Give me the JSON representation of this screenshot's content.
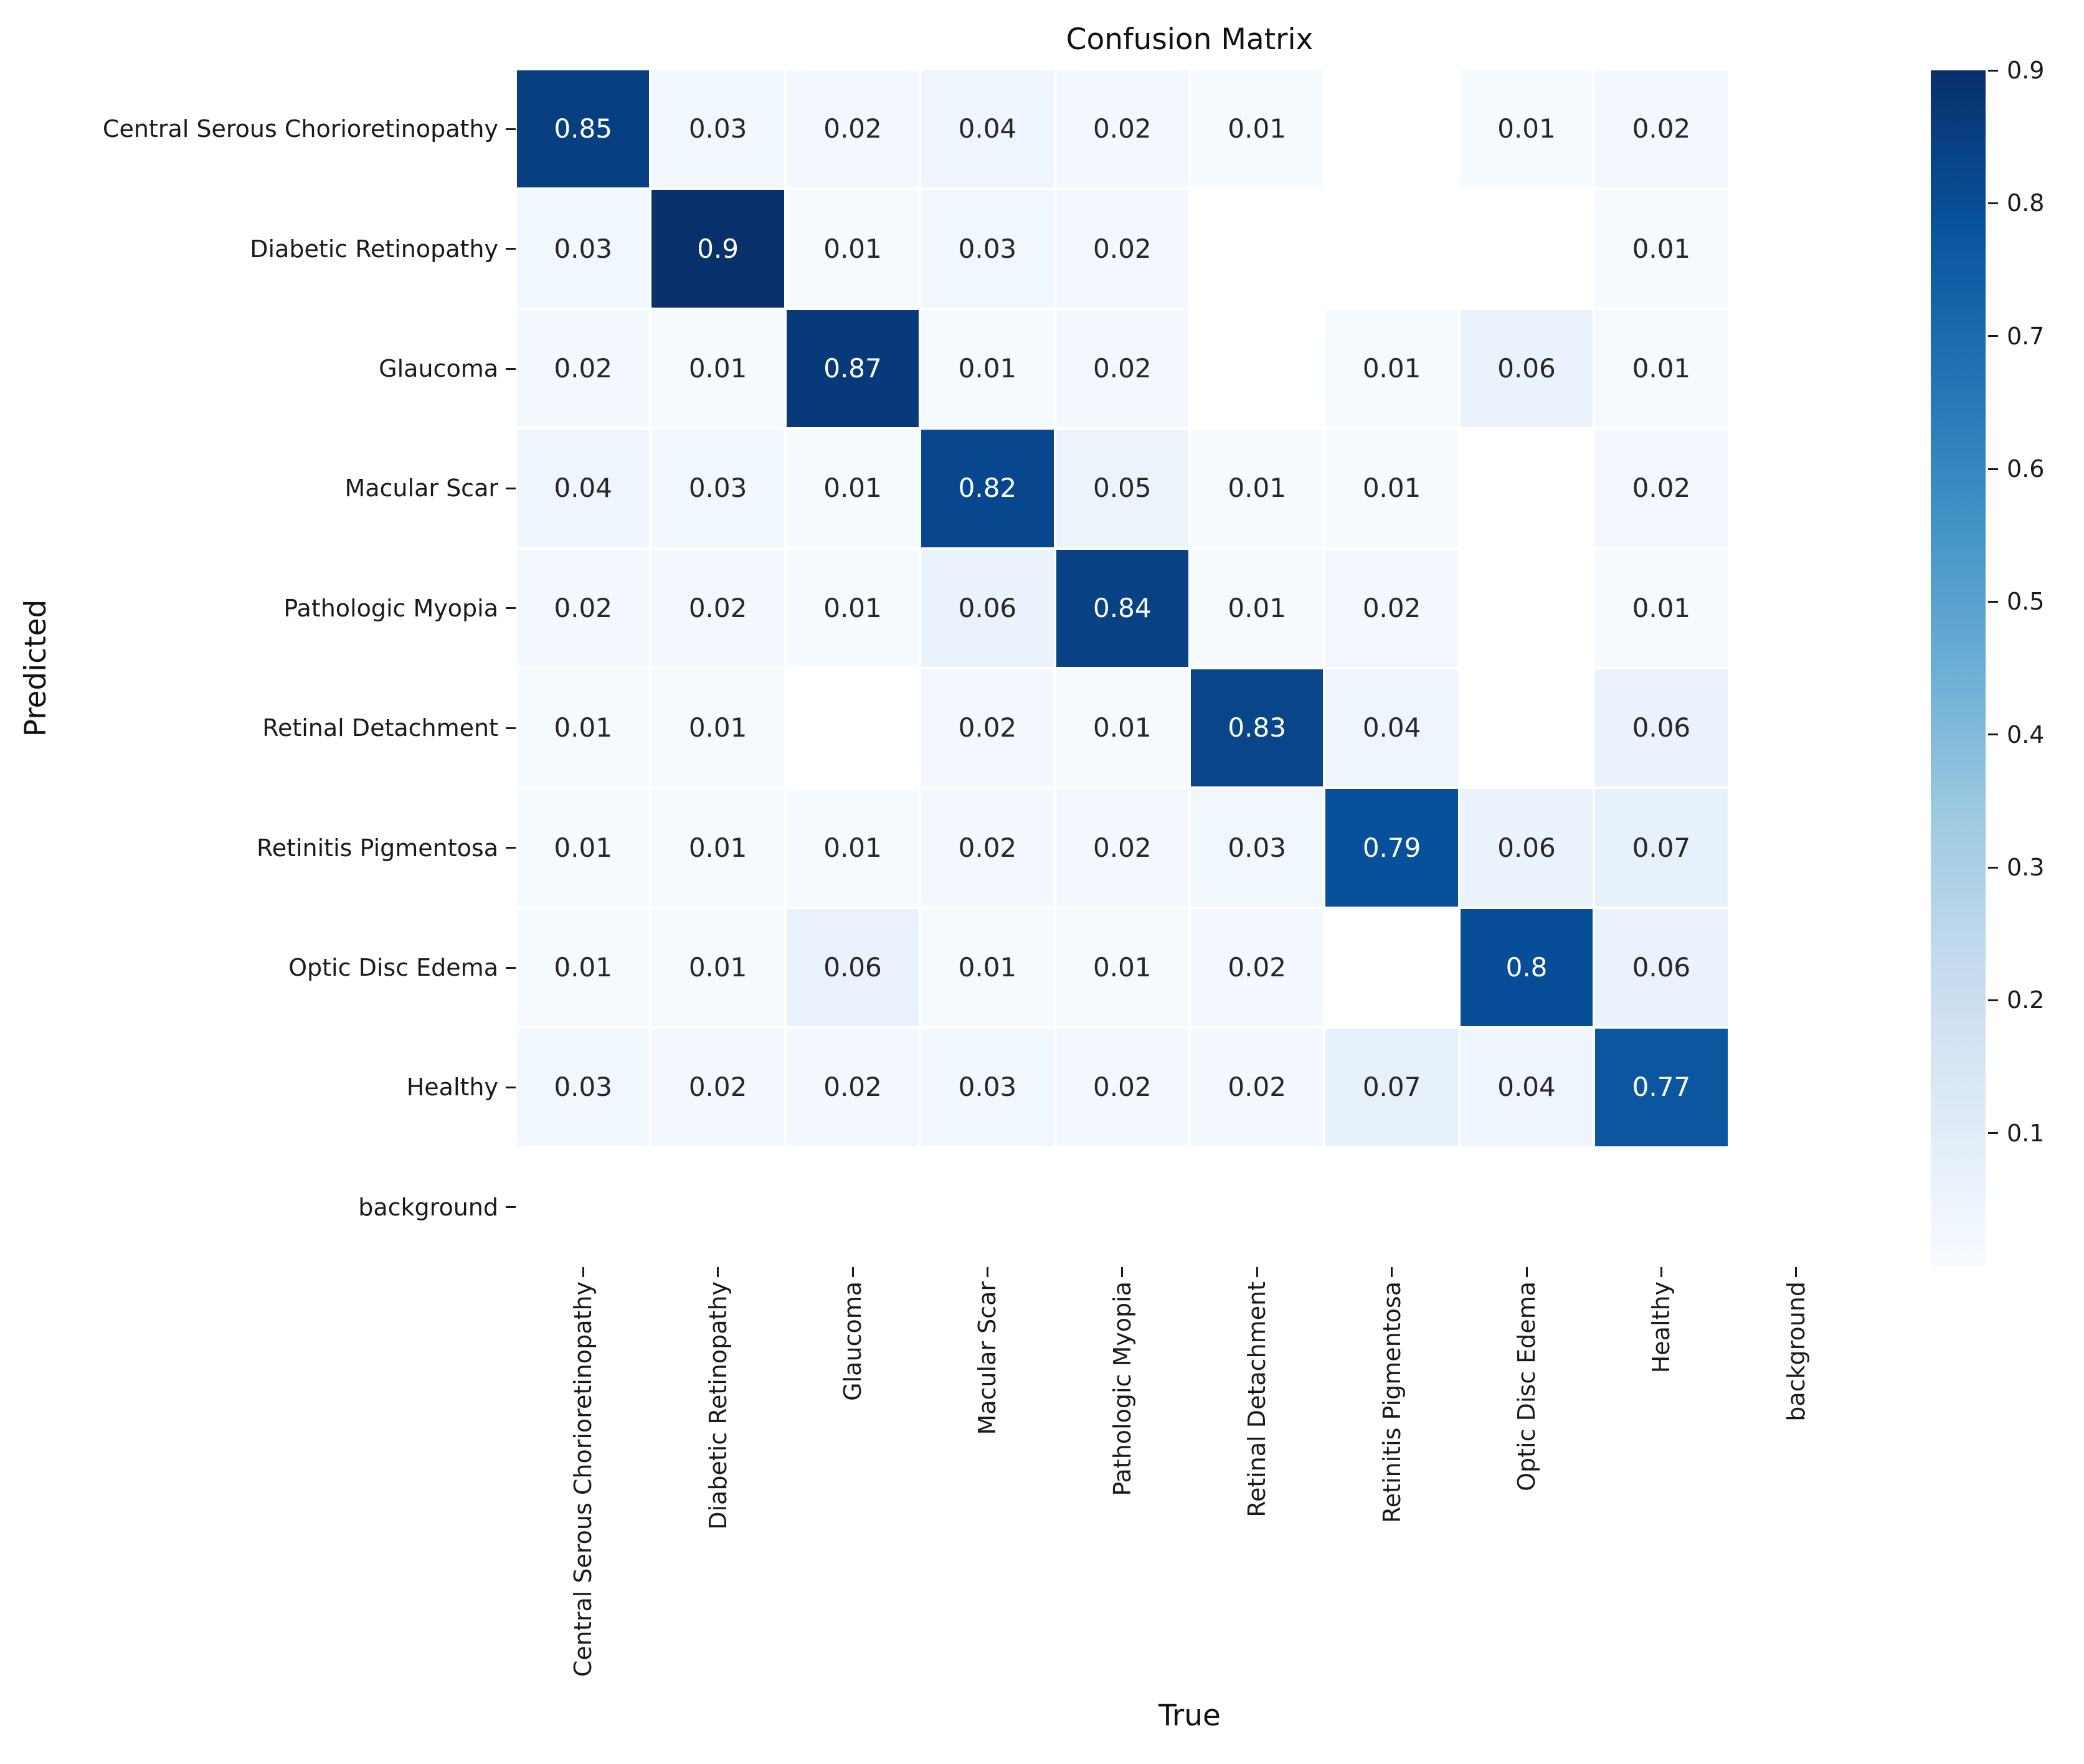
{
  "title": "Confusion Matrix",
  "x_axis_label": "True",
  "y_axis_label": "Predicted",
  "chart_data": {
    "type": "heatmap",
    "title": "Confusion Matrix",
    "xlabel": "True",
    "ylabel": "Predicted",
    "x_categories": [
      "Central Serous Chorioretinopathy",
      "Diabetic Retinopathy",
      "Glaucoma",
      "Macular Scar",
      "Pathologic Myopia",
      "Retinal Detachment",
      "Retinitis Pigmentosa",
      "Optic Disc Edema",
      "Healthy",
      "background"
    ],
    "y_categories": [
      "Central Serous Chorioretinopathy",
      "Diabetic Retinopathy",
      "Glaucoma",
      "Macular Scar",
      "Pathologic Myopia",
      "Retinal Detachment",
      "Retinitis Pigmentosa",
      "Optic Disc Edema",
      "Healthy",
      "background"
    ],
    "matrix": [
      [
        0.85,
        0.03,
        0.02,
        0.04,
        0.02,
        0.01,
        null,
        0.01,
        0.02,
        null
      ],
      [
        0.03,
        0.9,
        0.01,
        0.03,
        0.02,
        null,
        null,
        null,
        0.01,
        null
      ],
      [
        0.02,
        0.01,
        0.87,
        0.01,
        0.02,
        null,
        0.01,
        0.06,
        0.01,
        null
      ],
      [
        0.04,
        0.03,
        0.01,
        0.82,
        0.05,
        0.01,
        0.01,
        null,
        0.02,
        null
      ],
      [
        0.02,
        0.02,
        0.01,
        0.06,
        0.84,
        0.01,
        0.02,
        null,
        0.01,
        null
      ],
      [
        0.01,
        0.01,
        null,
        0.02,
        0.01,
        0.83,
        0.04,
        null,
        0.06,
        null
      ],
      [
        0.01,
        0.01,
        0.01,
        0.02,
        0.02,
        0.03,
        0.79,
        0.06,
        0.07,
        null
      ],
      [
        0.01,
        0.01,
        0.06,
        0.01,
        0.01,
        0.02,
        null,
        0.8,
        0.06,
        null
      ],
      [
        0.03,
        0.02,
        0.02,
        0.03,
        0.02,
        0.02,
        0.07,
        0.04,
        0.77,
        null
      ],
      [
        null,
        null,
        null,
        null,
        null,
        null,
        null,
        null,
        null,
        null
      ]
    ],
    "colormap": "Blues",
    "vmin": 0.0,
    "vmax": 0.9,
    "colorbar_position": "right",
    "colorbar_ticks": [
      0.9,
      0.8,
      0.7,
      0.6,
      0.5,
      0.4,
      0.3,
      0.2,
      0.1
    ],
    "colormap_anchors": [
      "#f7fbff",
      "#deebf7",
      "#c6dbef",
      "#9ecae1",
      "#6baed6",
      "#4292c6",
      "#2171b5",
      "#08519c",
      "#08306b"
    ],
    "annotation_text_colors": {
      "dark_cells": "#ffffff",
      "light_cells": "#262626"
    },
    "empty_cell_color": "#ffffff",
    "grid_on": false,
    "legend": "none"
  }
}
